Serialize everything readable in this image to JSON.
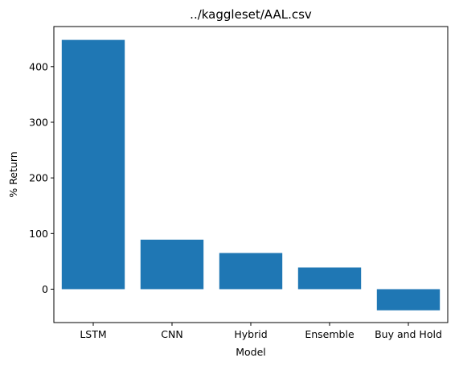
{
  "chart_data": {
    "type": "bar",
    "title": "../kaggleset/AAL.csv",
    "xlabel": "Model",
    "ylabel": "% Return",
    "categories": [
      "LSTM",
      "CNN",
      "Hybrid",
      "Ensemble",
      "Buy and Hold"
    ],
    "values": [
      448,
      89,
      65,
      39,
      -38
    ],
    "ylim": [
      -60,
      472
    ],
    "yticks": [
      0,
      100,
      200,
      300,
      400
    ],
    "grid": false,
    "bar_color": "#1f77b4"
  }
}
